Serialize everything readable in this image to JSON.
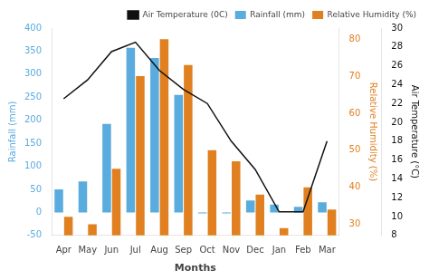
{
  "chart_data": {
    "type": "bar",
    "xlabel": "Months",
    "ylabel": "Rainfall (mm)",
    "y2label": "Relative Humidity (%)",
    "y3label": "Air Temperature (°C)",
    "categories": [
      "Apr",
      "May",
      "Jun",
      "Jul",
      "Aug",
      "Sep",
      "Oct",
      "Nov",
      "Dec",
      "Jan",
      "Feb",
      "Mar"
    ],
    "series": [
      {
        "name": "Rainfall (mm)",
        "type": "bar",
        "color": "#5aabde",
        "values": [
          50,
          67,
          192,
          357,
          335,
          255,
          -2,
          -2,
          26,
          17,
          12,
          22
        ]
      },
      {
        "name": "Relative Humidity (%)",
        "type": "bar",
        "color": "#e08020",
        "axis": "y2",
        "values": [
          32,
          30,
          45,
          70,
          80,
          73,
          50,
          47,
          38,
          29,
          40,
          34
        ]
      },
      {
        "name": "Air Temperature (0C)",
        "type": "line",
        "color": "#111111",
        "axis": "y3",
        "values": [
          22.5,
          24.5,
          27.5,
          28.5,
          25.5,
          23.5,
          22.0,
          18.0,
          15.0,
          10.5,
          10.5,
          18.0
        ]
      }
    ],
    "ylim": [
      -50,
      400
    ],
    "yticks": [
      -50,
      0,
      50,
      100,
      150,
      200,
      250,
      300,
      350,
      400
    ],
    "y2lim": [
      27,
      83
    ],
    "y2ticks": [
      30,
      40,
      50,
      60,
      70,
      80
    ],
    "y3lim": [
      8,
      30
    ],
    "y3ticks": [
      8,
      10,
      12,
      14,
      16,
      18,
      20,
      22,
      24,
      26,
      28,
      30
    ],
    "grid": false,
    "legend": "upper right"
  }
}
